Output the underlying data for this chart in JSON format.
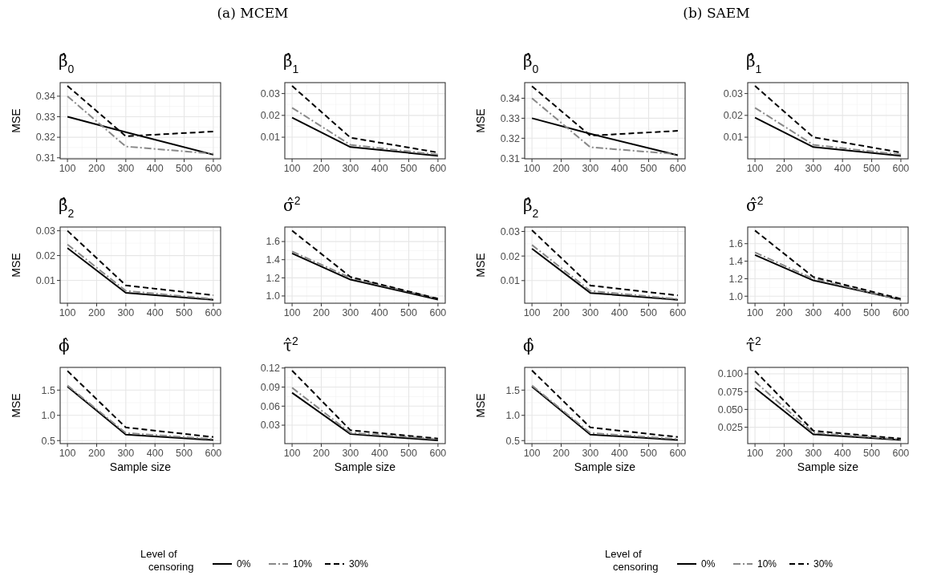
{
  "chart_data": [
    {
      "type": "line",
      "title": "β̂$_{0}$",
      "annotations": [
        "(a) MCEM"
      ],
      "ylabel": "MSE",
      "x": [
        100,
        300,
        600
      ],
      "xlim": [
        75,
        625
      ],
      "xticks": [
        100,
        200,
        300,
        400,
        500,
        600
      ],
      "ylim": [
        0.3095,
        0.3466
      ],
      "yticks": [
        0.31,
        0.32,
        0.33,
        0.34
      ],
      "grid": true,
      "series": [
        {
          "color": "#000000",
          "line_style": "solid",
          "values": [
            0.33,
            0.3225,
            0.3115
          ]
        },
        {
          "color": "#888888",
          "line_style": "dashdot",
          "values": [
            0.34,
            0.3155,
            0.312
          ]
        },
        {
          "color": "#000000",
          "line_style": "dashed",
          "values": [
            0.345,
            0.3205,
            0.3228
          ]
        }
      ]
    },
    {
      "type": "line",
      "title": "β̂$_{1}$",
      "x": [
        100,
        300,
        600
      ],
      "xlim": [
        75,
        625
      ],
      "xticks": [
        100,
        200,
        300,
        400,
        500,
        600
      ],
      "ylim": [
        0.0001,
        0.035
      ],
      "yticks": [
        0.01,
        0.02,
        0.03
      ],
      "grid": true,
      "series": [
        {
          "color": "#000000",
          "line_style": "solid",
          "values": [
            0.019,
            0.0055,
            0.0015
          ]
        },
        {
          "color": "#888888",
          "line_style": "dashdot",
          "values": [
            0.0235,
            0.0065,
            0.002
          ]
        },
        {
          "color": "#000000",
          "line_style": "dashed",
          "values": [
            0.0335,
            0.0098,
            0.003
          ]
        }
      ]
    },
    {
      "type": "line",
      "title": "β̂$_{2}$",
      "ylabel": "MSE",
      "x": [
        100,
        300,
        600
      ],
      "xlim": [
        75,
        625
      ],
      "xticks": [
        100,
        200,
        300,
        400,
        500,
        600
      ],
      "ylim": [
        0.0008,
        0.0315
      ],
      "yticks": [
        0.01,
        0.02,
        0.03
      ],
      "grid": true,
      "series": [
        {
          "color": "#000000",
          "line_style": "solid",
          "values": [
            0.023,
            0.005,
            0.0022
          ]
        },
        {
          "color": "#888888",
          "line_style": "dashdot",
          "values": [
            0.0245,
            0.0058,
            0.0025
          ]
        },
        {
          "color": "#000000",
          "line_style": "dashed",
          "values": [
            0.03,
            0.008,
            0.004
          ]
        }
      ]
    },
    {
      "type": "line",
      "title": "σ̂$^{2}$",
      "x": [
        100,
        300,
        600
      ],
      "xlim": [
        75,
        625
      ],
      "xticks": [
        100,
        200,
        300,
        400,
        500,
        600
      ],
      "ylim": [
        0.92,
        1.76
      ],
      "yticks": [
        {
          "value": 1.0,
          "label": "1.0"
        },
        1.2,
        1.4,
        1.6
      ],
      "grid": true,
      "series": [
        {
          "color": "#000000",
          "line_style": "solid",
          "values": [
            1.47,
            1.18,
            0.96
          ]
        },
        {
          "color": "#888888",
          "line_style": "dashdot",
          "values": [
            1.49,
            1.2,
            0.97
          ]
        },
        {
          "color": "#000000",
          "line_style": "dashed",
          "values": [
            1.72,
            1.21,
            0.97
          ]
        }
      ]
    },
    {
      "type": "line",
      "title": "ϕ̂",
      "ylabel": "MSE",
      "xlabel": "Sample size",
      "legend": "bottom",
      "legend_title": "Level of censoring",
      "x": [
        100,
        300,
        600
      ],
      "xlim": [
        75,
        625
      ],
      "xticks": [
        100,
        200,
        300,
        400,
        500,
        600
      ],
      "ylim": [
        0.44,
        1.95
      ],
      "yticks": [
        0.5,
        {
          "value": 1.0,
          "label": "1.0"
        },
        1.5
      ],
      "grid": true,
      "series": [
        {
          "name": "0%",
          "color": "#000000",
          "line_style": "solid",
          "values": [
            1.57,
            0.62,
            0.51
          ]
        },
        {
          "name": "10%",
          "color": "#888888",
          "line_style": "dashdot",
          "values": [
            1.59,
            0.65,
            0.53
          ]
        },
        {
          "name": "30%",
          "color": "#000000",
          "line_style": "dashed",
          "values": [
            1.88,
            0.76,
            0.57
          ]
        }
      ]
    },
    {
      "type": "line",
      "title": "τ̂$^{2}$",
      "xlabel": "Sample size",
      "x": [
        100,
        300,
        600
      ],
      "xlim": [
        75,
        625
      ],
      "xticks": [
        100,
        200,
        300,
        400,
        500,
        600
      ],
      "ylim": [
        0.001,
        0.121
      ],
      "yticks": [
        0.03,
        0.06,
        0.09,
        0.12
      ],
      "grid": true,
      "series": [
        {
          "color": "#000000",
          "line_style": "solid",
          "values": [
            0.081,
            0.016,
            0.006
          ]
        },
        {
          "color": "#888888",
          "line_style": "dashdot",
          "values": [
            0.089,
            0.018,
            0.008
          ]
        },
        {
          "color": "#000000",
          "line_style": "dashed",
          "values": [
            0.116,
            0.022,
            0.009
          ]
        }
      ]
    },
    {
      "type": "line",
      "title": "β̂$_{0}$",
      "annotations": [
        "(b) SAEM"
      ],
      "ylabel": "MSE",
      "x": [
        100,
        300,
        600
      ],
      "xlim": [
        75,
        625
      ],
      "xticks": [
        100,
        200,
        300,
        400,
        500,
        600
      ],
      "ylim": [
        0.3097,
        0.3478
      ],
      "yticks": [
        0.31,
        0.32,
        0.33,
        0.34
      ],
      "grid": true,
      "series": [
        {
          "color": "#000000",
          "line_style": "solid",
          "values": [
            0.33,
            0.3222,
            0.3115
          ]
        },
        {
          "color": "#888888",
          "line_style": "dashdot",
          "values": [
            0.34,
            0.3155,
            0.312
          ]
        },
        {
          "color": "#000000",
          "line_style": "dashed",
          "values": [
            0.346,
            0.3213,
            0.3237
          ]
        }
      ]
    },
    {
      "type": "line",
      "title": "β̂$_{1}$",
      "x": [
        100,
        300,
        600
      ],
      "xlim": [
        75,
        625
      ],
      "xticks": [
        100,
        200,
        300,
        400,
        500,
        600
      ],
      "ylim": [
        0.0001,
        0.035
      ],
      "yticks": [
        0.01,
        0.02,
        0.03
      ],
      "grid": true,
      "series": [
        {
          "color": "#000000",
          "line_style": "solid",
          "values": [
            0.019,
            0.0055,
            0.0015
          ]
        },
        {
          "color": "#888888",
          "line_style": "dashdot",
          "values": [
            0.0235,
            0.0065,
            0.002
          ]
        },
        {
          "color": "#000000",
          "line_style": "dashed",
          "values": [
            0.0335,
            0.01,
            0.003
          ]
        }
      ]
    },
    {
      "type": "line",
      "title": "β̂$_{2}$",
      "ylabel": "MSE",
      "x": [
        100,
        300,
        600
      ],
      "xlim": [
        75,
        625
      ],
      "xticks": [
        100,
        200,
        300,
        400,
        500,
        600
      ],
      "ylim": [
        0.0008,
        0.0318
      ],
      "yticks": [
        0.01,
        0.02,
        0.03
      ],
      "grid": true,
      "series": [
        {
          "color": "#000000",
          "line_style": "solid",
          "values": [
            0.023,
            0.005,
            0.0022
          ]
        },
        {
          "color": "#888888",
          "line_style": "dashdot",
          "values": [
            0.0245,
            0.0058,
            0.0025
          ]
        },
        {
          "color": "#000000",
          "line_style": "dashed",
          "values": [
            0.0305,
            0.008,
            0.004
          ]
        }
      ]
    },
    {
      "type": "line",
      "title": "σ̂$^{2}$",
      "x": [
        100,
        300,
        600
      ],
      "xlim": [
        75,
        625
      ],
      "xticks": [
        100,
        200,
        300,
        400,
        500,
        600
      ],
      "ylim": [
        0.92,
        1.79
      ],
      "yticks": [
        {
          "value": 1.0,
          "label": "1.0"
        },
        1.2,
        1.4,
        1.6
      ],
      "grid": true,
      "series": [
        {
          "color": "#000000",
          "line_style": "solid",
          "values": [
            1.47,
            1.18,
            0.96
          ]
        },
        {
          "color": "#888888",
          "line_style": "dashdot",
          "values": [
            1.5,
            1.2,
            0.96
          ]
        },
        {
          "color": "#000000",
          "line_style": "dashed",
          "values": [
            1.75,
            1.22,
            0.97
          ]
        }
      ]
    },
    {
      "type": "line",
      "title": "ϕ̂",
      "ylabel": "MSE",
      "xlabel": "Sample size",
      "legend": "bottom",
      "legend_title": "Level of censoring",
      "x": [
        100,
        300,
        600
      ],
      "xlim": [
        75,
        625
      ],
      "xticks": [
        100,
        200,
        300,
        400,
        500,
        600
      ],
      "ylim": [
        0.44,
        1.95
      ],
      "yticks": [
        0.5,
        {
          "value": 1.0,
          "label": "1.0"
        },
        1.5
      ],
      "grid": true,
      "series": [
        {
          "name": "0%",
          "color": "#000000",
          "line_style": "solid",
          "values": [
            1.57,
            0.62,
            0.51
          ]
        },
        {
          "name": "10%",
          "color": "#888888",
          "line_style": "dashdot",
          "values": [
            1.59,
            0.65,
            0.53
          ]
        },
        {
          "name": "30%",
          "color": "#000000",
          "line_style": "dashed",
          "values": [
            1.89,
            0.76,
            0.57
          ]
        }
      ]
    },
    {
      "type": "line",
      "title": "τ̂$^{2}$",
      "xlabel": "Sample size",
      "x": [
        100,
        300,
        600
      ],
      "xlim": [
        75,
        625
      ],
      "xticks": [
        100,
        200,
        300,
        400,
        500,
        600
      ],
      "ylim": [
        0.002,
        0.109
      ],
      "yticks": [
        {
          "value": 0.025,
          "label": "0.025"
        },
        {
          "value": 0.05,
          "label": "0.050"
        },
        {
          "value": 0.075,
          "label": "0.075"
        },
        {
          "value": 0.1,
          "label": "0.100"
        }
      ],
      "grid": true,
      "series": [
        {
          "color": "#000000",
          "line_style": "solid",
          "values": [
            0.08,
            0.015,
            0.007
          ]
        },
        {
          "color": "#888888",
          "line_style": "dashdot",
          "values": [
            0.089,
            0.017,
            0.008
          ]
        },
        {
          "color": "#000000",
          "line_style": "dashed",
          "values": [
            0.104,
            0.02,
            0.009
          ]
        }
      ]
    }
  ]
}
